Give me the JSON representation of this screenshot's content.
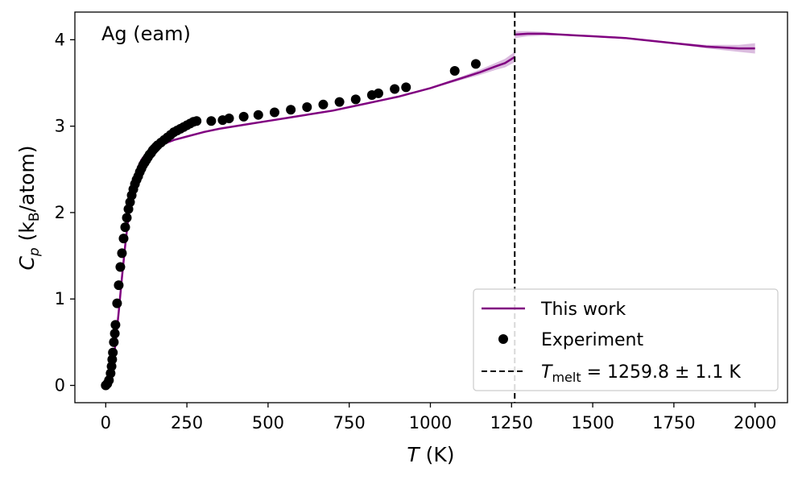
{
  "chart_data": {
    "type": "line",
    "annotation": "Ag (eam)",
    "xlabel": {
      "main": "T",
      "unit": " (K)"
    },
    "ylabel": {
      "main": "C",
      "sub": "p",
      "unit_open": " (k",
      "unit_sub": "B",
      "unit_close": "/atom)"
    },
    "xlim": [
      -95,
      2100
    ],
    "ylim": [
      -0.2,
      4.32
    ],
    "xticks": [
      0,
      250,
      500,
      750,
      1000,
      1250,
      1500,
      1750,
      2000
    ],
    "xtick_labels": [
      "0",
      "250",
      "500",
      "750",
      "1000",
      "1250",
      "1500",
      "1750",
      "2000"
    ],
    "yticks": [
      0,
      1,
      2,
      3,
      4
    ],
    "ytick_labels": [
      "0",
      "1",
      "2",
      "3",
      "4"
    ],
    "grid": false,
    "legend": {
      "placement": "lower-right",
      "entries": [
        {
          "label": "This work",
          "kind": "line"
        },
        {
          "label": "Experiment",
          "kind": "marker"
        },
        {
          "label_main": "T",
          "label_sub": "melt",
          "label_rest": " = 1259.8 ± 1.1 K",
          "kind": "dashed"
        }
      ]
    },
    "colors": {
      "this_work": "#800080",
      "band": "#c38fc9",
      "experiment": "#000000",
      "melt_line": "#000000"
    },
    "melt_temperature": 1259.8,
    "series": [
      {
        "name": "This work",
        "segment": "solid",
        "x": [
          0,
          10,
          20,
          30,
          40,
          50,
          60,
          70,
          80,
          90,
          100,
          110,
          120,
          130,
          140,
          150,
          170,
          190,
          210,
          250,
          300,
          350,
          400,
          450,
          500,
          550,
          600,
          650,
          700,
          750,
          800,
          850,
          900,
          950,
          1000,
          1050,
          1100,
          1150,
          1200,
          1230,
          1259.8
        ],
        "y": [
          0,
          0.05,
          0.2,
          0.48,
          0.85,
          1.25,
          1.62,
          1.95,
          2.2,
          2.4,
          2.53,
          2.61,
          2.66,
          2.7,
          2.72,
          2.74,
          2.78,
          2.81,
          2.84,
          2.88,
          2.93,
          2.97,
          3.0,
          3.03,
          3.06,
          3.09,
          3.12,
          3.15,
          3.18,
          3.22,
          3.26,
          3.3,
          3.34,
          3.39,
          3.44,
          3.5,
          3.56,
          3.62,
          3.69,
          3.73,
          3.8
        ],
        "band": [
          0,
          0,
          0,
          0,
          0,
          0,
          0,
          0,
          0,
          0,
          0,
          0,
          0,
          0,
          0,
          0,
          0,
          0,
          0,
          0,
          0,
          0,
          0,
          0,
          0,
          0,
          0,
          0,
          0,
          0,
          0,
          0,
          0,
          0.005,
          0.01,
          0.015,
          0.02,
          0.03,
          0.04,
          0.05,
          0.06
        ]
      },
      {
        "name": "This work",
        "segment": "liquid",
        "x": [
          1259.8,
          1300,
          1350,
          1400,
          1450,
          1500,
          1550,
          1600,
          1650,
          1700,
          1750,
          1800,
          1850,
          1900,
          1950,
          2000
        ],
        "y": [
          4.06,
          4.07,
          4.07,
          4.06,
          4.05,
          4.04,
          4.03,
          4.02,
          4.0,
          3.98,
          3.96,
          3.94,
          3.92,
          3.91,
          3.9,
          3.9
        ],
        "band": [
          0.04,
          0.03,
          0.02,
          0.01,
          0.01,
          0.01,
          0.01,
          0.01,
          0.01,
          0.01,
          0.01,
          0.015,
          0.02,
          0.03,
          0.04,
          0.06
        ]
      },
      {
        "name": "Experiment",
        "x": [
          0,
          5,
          10,
          15,
          18,
          20,
          22,
          25,
          28,
          30,
          35,
          40,
          45,
          50,
          55,
          60,
          65,
          70,
          75,
          80,
          85,
          90,
          95,
          100,
          105,
          110,
          115,
          120,
          125,
          130,
          135,
          140,
          145,
          150,
          155,
          160,
          170,
          180,
          190,
          200,
          210,
          220,
          230,
          240,
          250,
          260,
          270,
          280,
          325,
          360,
          380,
          425,
          470,
          520,
          570,
          620,
          670,
          720,
          770,
          820,
          840,
          890,
          925,
          1075,
          1140
        ],
        "y": [
          0,
          0.02,
          0.06,
          0.14,
          0.22,
          0.3,
          0.38,
          0.5,
          0.6,
          0.7,
          0.95,
          1.16,
          1.37,
          1.53,
          1.7,
          1.83,
          1.94,
          2.04,
          2.12,
          2.2,
          2.27,
          2.33,
          2.38,
          2.42,
          2.47,
          2.51,
          2.55,
          2.58,
          2.61,
          2.64,
          2.67,
          2.69,
          2.72,
          2.74,
          2.76,
          2.78,
          2.81,
          2.84,
          2.87,
          2.9,
          2.93,
          2.95,
          2.97,
          2.99,
          3.01,
          3.03,
          3.05,
          3.06,
          3.06,
          3.07,
          3.09,
          3.11,
          3.13,
          3.16,
          3.19,
          3.22,
          3.25,
          3.28,
          3.31,
          3.36,
          3.38,
          3.43,
          3.45,
          3.64,
          3.72
        ]
      }
    ]
  }
}
